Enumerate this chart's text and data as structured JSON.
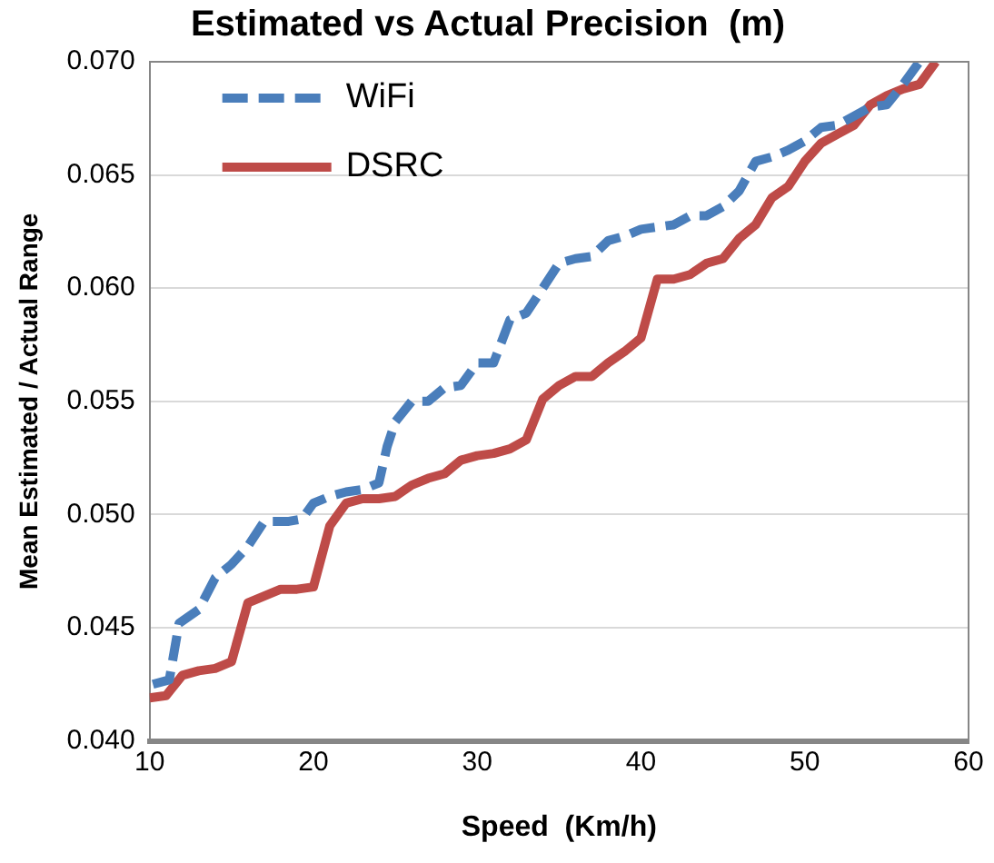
{
  "chart_data": {
    "type": "line",
    "title": "Estimated vs Actual Precision  (m)",
    "xlabel": "Speed  (Km/h)",
    "ylabel": "Mean Estimated / Actual Range",
    "xlim": [
      10,
      60
    ],
    "xticks": [
      10,
      20,
      30,
      40,
      50,
      60
    ],
    "ylim": [
      0.04,
      0.07
    ],
    "yticks": [
      {
        "value": 0.04,
        "label": "0.040"
      },
      {
        "value": 0.045,
        "label": "0.045"
      },
      {
        "value": 0.05,
        "label": "0.050"
      },
      {
        "value": 0.055,
        "label": "0.055"
      },
      {
        "value": 0.06,
        "label": "0.060"
      },
      {
        "value": 0.065,
        "label": "0.065"
      },
      {
        "value": 0.07,
        "label": "0.070"
      }
    ],
    "grid": "y",
    "legend": "top left",
    "marker": "none",
    "series": [
      {
        "name": "WiFi",
        "color": "#4a7ebb",
        "line_style": "dashed",
        "x": [
          10.2,
          11.2,
          11.8,
          13,
          14,
          15,
          16,
          17,
          18.5,
          19.3,
          20,
          21,
          22,
          23,
          24,
          24.5,
          25,
          26,
          27,
          28,
          29,
          30,
          31,
          32,
          33,
          34,
          35,
          36,
          37,
          38,
          39,
          40,
          41,
          42,
          43,
          44,
          45,
          46,
          47,
          48,
          49,
          50,
          51,
          52,
          53,
          54,
          55,
          56,
          57
        ],
        "values": [
          0.0425,
          0.0427,
          0.0452,
          0.0458,
          0.0472,
          0.0478,
          0.0486,
          0.0497,
          0.0497,
          0.0498,
          0.0505,
          0.0508,
          0.051,
          0.0511,
          0.0514,
          0.053,
          0.0541,
          0.055,
          0.055,
          0.0556,
          0.0557,
          0.0567,
          0.0567,
          0.0586,
          0.0589,
          0.06,
          0.0611,
          0.0613,
          0.0614,
          0.0621,
          0.0623,
          0.0626,
          0.0627,
          0.0628,
          0.0632,
          0.0632,
          0.0636,
          0.0643,
          0.0656,
          0.0658,
          0.0661,
          0.0665,
          0.0671,
          0.0672,
          0.0676,
          0.068,
          0.0681,
          0.069,
          0.07
        ]
      },
      {
        "name": "DSRC",
        "color": "#be4b48",
        "line_style": "solid",
        "x": [
          10,
          11,
          12,
          13,
          14,
          15,
          16,
          17,
          18,
          19,
          20,
          21,
          22,
          23,
          24,
          25,
          26,
          27,
          28,
          29,
          30,
          31,
          32,
          33,
          34,
          35,
          36,
          37,
          38,
          39,
          40,
          41,
          42,
          43,
          44,
          45,
          46,
          47,
          48,
          49,
          50,
          51,
          52,
          53,
          54,
          55,
          56,
          57,
          58
        ],
        "values": [
          0.0419,
          0.042,
          0.0429,
          0.0431,
          0.0432,
          0.0435,
          0.0461,
          0.0464,
          0.0467,
          0.0467,
          0.0468,
          0.0495,
          0.0505,
          0.0507,
          0.0507,
          0.0508,
          0.0513,
          0.0516,
          0.0518,
          0.0524,
          0.0526,
          0.0527,
          0.0529,
          0.0533,
          0.0551,
          0.0557,
          0.0561,
          0.0561,
          0.0567,
          0.0572,
          0.0578,
          0.0604,
          0.0604,
          0.0606,
          0.0611,
          0.0613,
          0.0622,
          0.0628,
          0.064,
          0.0645,
          0.0656,
          0.0664,
          0.0668,
          0.0672,
          0.0681,
          0.0685,
          0.0688,
          0.069,
          0.07
        ]
      }
    ]
  }
}
